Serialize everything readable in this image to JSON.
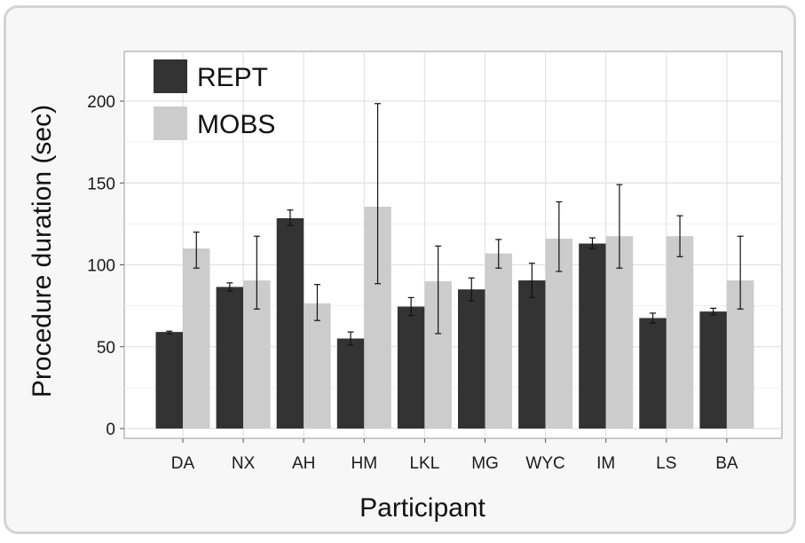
{
  "chart_data": {
    "type": "bar",
    "xlabel": "Participant",
    "ylabel": "Procedure duration (sec)",
    "ylim": [
      0,
      225
    ],
    "yticks": [
      0,
      50,
      100,
      150,
      200
    ],
    "grid": true,
    "legend_position": "top-left",
    "categories": [
      "DA",
      "NX",
      "AH",
      "HM",
      "LKL",
      "MG",
      "WYC",
      "IM",
      "LS",
      "BA"
    ],
    "series": [
      {
        "name": "REPT",
        "color": "#333333",
        "values": [
          59,
          86.5,
          128.5,
          55,
          74.5,
          85,
          90.5,
          113,
          67.5,
          71.5
        ],
        "error_low": [
          58,
          84,
          124,
          51,
          69,
          78,
          80,
          110,
          64.5,
          69.5
        ],
        "error_high": [
          59.5,
          89,
          133.5,
          59,
          80,
          92,
          101,
          116.5,
          70.5,
          73.5
        ]
      },
      {
        "name": "MOBS",
        "color": "#cccccc",
        "values": [
          110,
          90.5,
          76.5,
          135.5,
          90,
          107,
          116,
          117.5,
          117.5,
          90.5
        ],
        "error_low": [
          98,
          73,
          66,
          88.5,
          58,
          98,
          96,
          98,
          105,
          73
        ],
        "error_high": [
          120,
          117.5,
          88,
          198.5,
          111.5,
          115.5,
          138.5,
          149,
          130,
          117.5
        ]
      }
    ]
  }
}
